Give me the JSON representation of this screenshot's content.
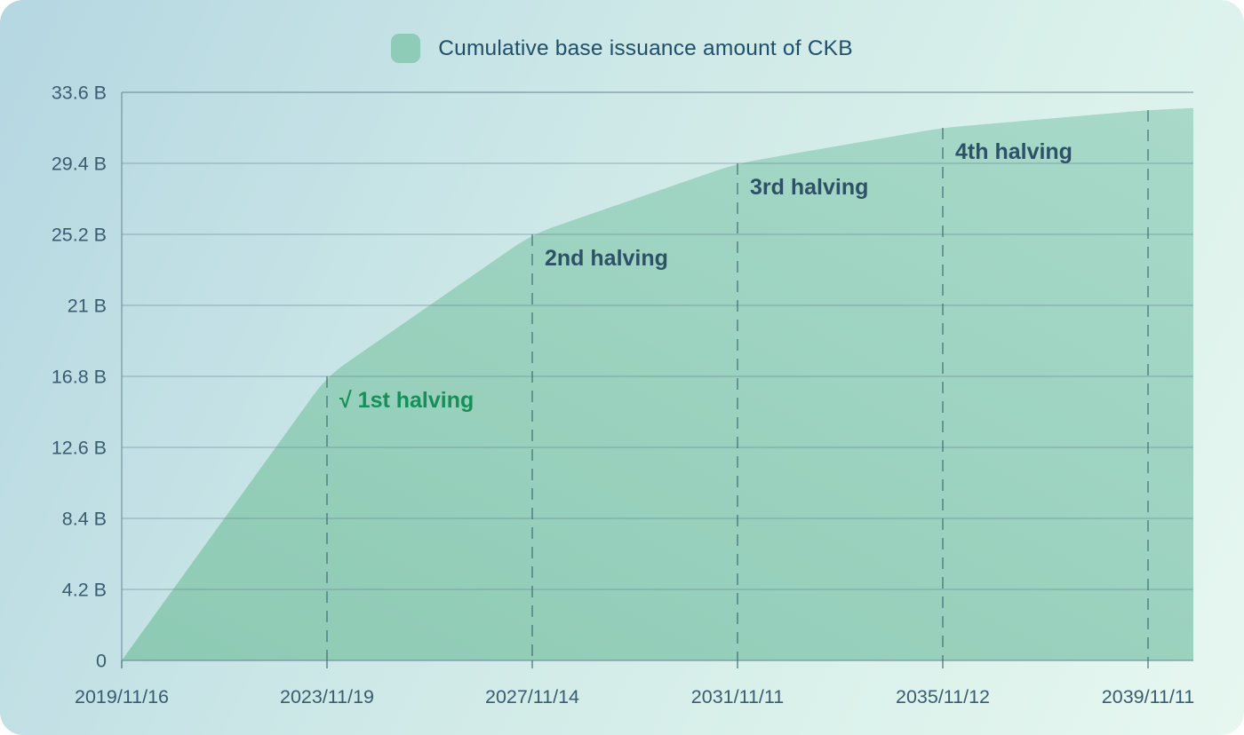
{
  "legend": {
    "label": "Cumulative base issuance amount of CKB",
    "swatch_color": "#8fccb8"
  },
  "chart_data": {
    "type": "area",
    "title": "Cumulative base issuance amount of CKB",
    "xlabel": "",
    "ylabel": "",
    "x_tick_labels": [
      "2019/11/16",
      "2023/11/19",
      "2027/11/14",
      "2031/11/11",
      "2035/11/12",
      "2039/11/11"
    ],
    "y_tick_labels_bottom_up": [
      "0",
      "4.2 B",
      "8.4 B",
      "12.6 B",
      "16.8 B",
      "21 B",
      "25.2 B",
      "29.4 B",
      "33.6 B"
    ],
    "ylim_billion": [
      0,
      33.6
    ],
    "y_step_billion": 4.2,
    "grid": true,
    "legend_position": "top",
    "series": [
      {
        "name": "Cumulative base issuance amount of CKB",
        "x": [
          "2019/11/16",
          "2023/11/19",
          "2027/11/14",
          "2031/11/11",
          "2035/11/12",
          "2039/11/11"
        ],
        "values_billion": [
          0,
          16.8,
          25.2,
          29.4,
          31.5,
          32.55
        ],
        "right_edge_value_billion": 32.67
      }
    ],
    "annotations": [
      {
        "label": "√ 1st halving",
        "x_label": "2023/11/19",
        "tick_index": 1,
        "value_billion": 16.8,
        "color": "#168f5a"
      },
      {
        "label": "2nd halving",
        "x_label": "2027/11/14",
        "tick_index": 2,
        "value_billion": 25.2,
        "color": "#2d5166"
      },
      {
        "label": "3rd halving",
        "x_label": "2031/11/11",
        "tick_index": 3,
        "value_billion": 29.4,
        "color": "#2d5166"
      },
      {
        "label": "4th halving",
        "x_label": "2035/11/12",
        "tick_index": 4,
        "value_billion": 31.5,
        "color": "#2d5166"
      }
    ],
    "colors": {
      "area_fill_from": "#8dcab4",
      "area_fill_to": "#a8d9c9",
      "gridline": "rgba(100,130,145,0.38)",
      "axis_border": "rgba(100,130,145,0.65)",
      "dashed_line": "rgba(55,100,108,0.55)",
      "axis_text": "#3a5c70"
    }
  }
}
